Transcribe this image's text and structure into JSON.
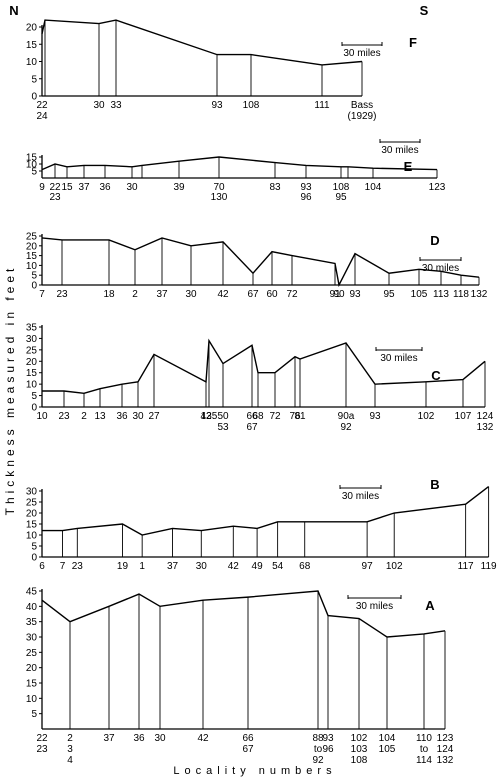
{
  "chart_data": [
    {
      "type": "line",
      "panel": "F",
      "ylim": [
        0,
        20
      ],
      "yticks": [
        0,
        5,
        10,
        15,
        20
      ],
      "corner_labels": [
        "N",
        "S"
      ],
      "scale_bar": "30 miles",
      "series": [
        {
          "x": [
            0,
            3,
            57,
            74,
            175,
            209,
            280,
            320
          ],
          "values": [
            18,
            22,
            21,
            22,
            12,
            12,
            9,
            10
          ],
          "tick_labels": [
            "22\n24",
            "",
            "30",
            "33",
            "93",
            "108",
            "111",
            "Bass\n(1929)"
          ]
        }
      ]
    },
    {
      "type": "line",
      "panel": "E",
      "ylim": [
        0,
        15
      ],
      "yticks": [
        5,
        10,
        15
      ],
      "scale_bar": "30 miles",
      "series": [
        {
          "x": [
            0,
            13,
            25,
            42,
            63,
            90,
            100,
            137,
            177,
            233,
            264,
            299,
            306,
            331,
            395
          ],
          "values": [
            6,
            10,
            8,
            9,
            9,
            8,
            9,
            12,
            15,
            11,
            9,
            8,
            8,
            7,
            6
          ],
          "tick_labels": [
            "9",
            "22\n23",
            "15",
            "37",
            "36",
            "30",
            "",
            "39",
            "70\n130",
            "83",
            "93\n96",
            "108\n95",
            "",
            "104",
            "123"
          ]
        }
      ]
    },
    {
      "type": "line",
      "panel": "D",
      "ylim": [
        0,
        25
      ],
      "yticks": [
        0,
        5,
        10,
        15,
        20,
        25
      ],
      "scale_bar": "30 miles",
      "series": [
        {
          "x": [
            0,
            20,
            67,
            93,
            120,
            149,
            181,
            211,
            230,
            250,
            293,
            297,
            313,
            347,
            377,
            399,
            419,
            437
          ],
          "values": [
            24,
            23,
            23,
            18,
            24,
            20,
            22,
            6,
            17,
            15,
            11,
            0,
            16,
            6,
            8,
            7,
            5,
            4
          ],
          "tick_labels": [
            "7",
            "23",
            "18",
            "2",
            "37",
            "30",
            "42",
            "67",
            "60",
            "72",
            "91",
            "90",
            "93",
            "95",
            "105",
            "113",
            "118",
            "132"
          ]
        }
      ]
    },
    {
      "type": "line",
      "panel": "C",
      "ylim": [
        0,
        35
      ],
      "yticks": [
        0,
        5,
        10,
        15,
        20,
        25,
        30,
        35
      ],
      "scale_bar": "30 miles",
      "series": [
        {
          "x": [
            0,
            22,
            42,
            58,
            80,
            96,
            112,
            164,
            167,
            181,
            210,
            216,
            233,
            253,
            258,
            304,
            333,
            384,
            421,
            443
          ],
          "values": [
            7,
            7,
            6,
            8,
            10,
            11,
            23,
            11,
            29,
            19,
            27,
            15,
            15,
            22,
            21,
            28,
            10,
            11,
            12,
            20
          ],
          "tick_labels": [
            "10",
            "23",
            "2",
            "13",
            "36",
            "30",
            "27",
            "42",
            "135",
            "50\n53",
            "66\n67",
            "68",
            "72",
            "76",
            "81",
            "90a\n92",
            "93",
            "102",
            "107",
            "124\n132"
          ]
        }
      ]
    },
    {
      "type": "line",
      "panel": "B",
      "ylim": [
        0,
        30
      ],
      "yticks": [
        0,
        5,
        10,
        15,
        20,
        25,
        30
      ],
      "scale_bar": "30 miles",
      "series": [
        {
          "x": [
            0,
            25,
            43,
            98,
            122,
            159,
            194,
            233,
            262,
            287,
            320,
            396,
            429,
            516,
            544
          ],
          "values": [
            12,
            12,
            13,
            15,
            10,
            13,
            12,
            14,
            13,
            16,
            16,
            16,
            20,
            24,
            32
          ],
          "tick_labels": [
            "6",
            "7",
            "23",
            "19",
            "1",
            "37",
            "30",
            "42",
            "49",
            "54",
            "68",
            "97",
            "102",
            "117",
            "119"
          ]
        }
      ]
    },
    {
      "type": "line",
      "panel": "A",
      "ylim": [
        0,
        45
      ],
      "yticks": [
        5,
        10,
        15,
        20,
        25,
        30,
        35,
        40,
        45
      ],
      "scale_bar": "30 miles",
      "series": [
        {
          "x": [
            0,
            28,
            67,
            97,
            118,
            161,
            206,
            276,
            286,
            317,
            345,
            382,
            403
          ],
          "values": [
            42,
            35,
            40,
            44,
            40,
            42,
            43,
            45,
            37,
            36,
            30,
            31,
            32
          ],
          "tick_labels": [
            "22\n23",
            "2\n3\n4",
            "37",
            "36",
            "30",
            "42",
            "66\n67",
            "88\nto\n92",
            "93\n96",
            "102\n103\n108",
            "104\n105",
            "110\nto\n114",
            "123\n124\n132"
          ]
        }
      ]
    }
  ],
  "axis": {
    "ylabel": "Thickness   measured   in   feet",
    "xlabel": "Locality   numbers"
  }
}
